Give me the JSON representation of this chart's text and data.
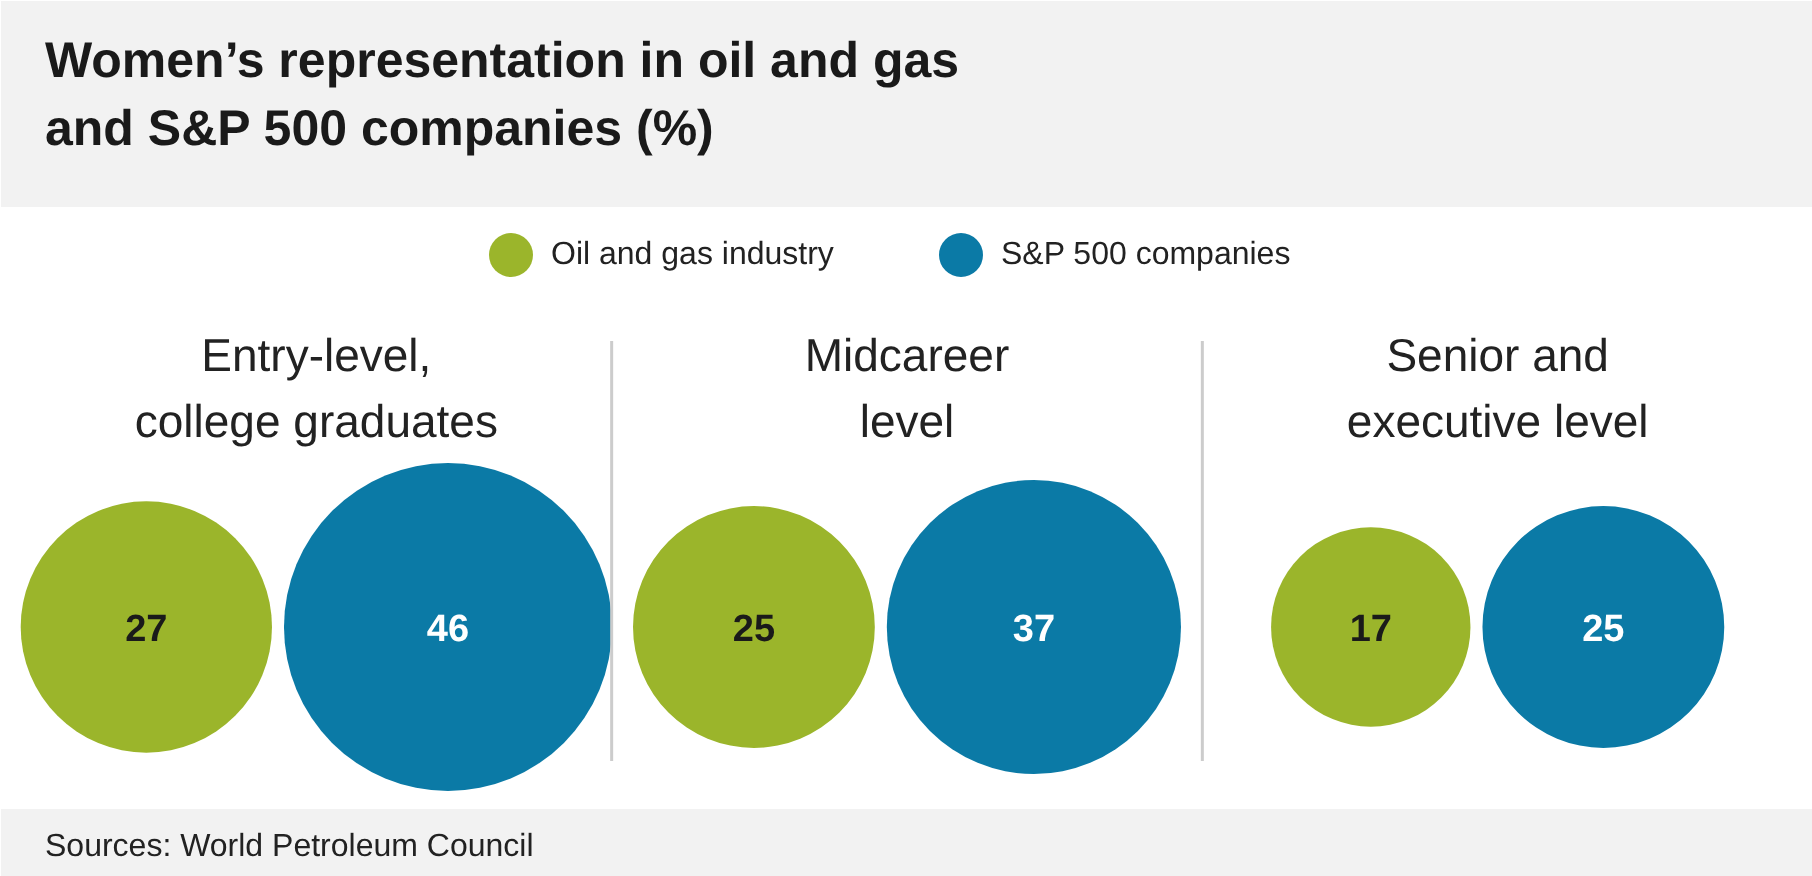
{
  "chart_data": {
    "type": "other",
    "title": "Women’s representation in oil and gas and S&P 500 companies (%)",
    "categories": [
      "Entry-level, college graduates",
      "Midcareer level",
      "Senior and executive level"
    ],
    "series": [
      {
        "name": "Oil and gas industry",
        "color": "#9bb52b",
        "values": [
          27,
          25,
          17
        ]
      },
      {
        "name": "S&P 500 companies",
        "color": "#0b7aa6",
        "values": [
          46,
          37,
          25
        ]
      }
    ],
    "data_labels": true,
    "legend": "top",
    "annotations": [
      "Sources: World Petroleum Council"
    ]
  }
}
